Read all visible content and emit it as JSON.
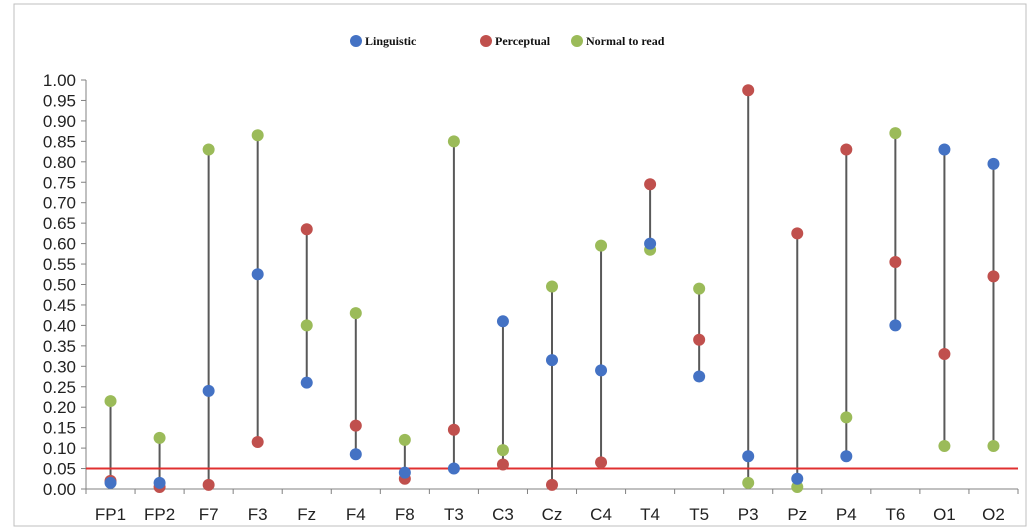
{
  "chart_data": {
    "type": "scatter",
    "categories": [
      "FP1",
      "FP2",
      "F7",
      "F3",
      "Fz",
      "F4",
      "F8",
      "T3",
      "C3",
      "Cz",
      "C4",
      "T4",
      "T5",
      "P3",
      "Pz",
      "P4",
      "T6",
      "O1",
      "O2"
    ],
    "series": [
      {
        "name": "Linguistic",
        "color": "#4472c4",
        "values": [
          0.015,
          0.015,
          0.24,
          0.525,
          0.26,
          0.085,
          0.04,
          0.05,
          0.41,
          0.315,
          0.29,
          0.6,
          0.275,
          0.08,
          0.025,
          0.08,
          0.4,
          0.83,
          0.795
        ]
      },
      {
        "name": "Perceptual",
        "color": "#c0504d",
        "values": [
          0.02,
          0.005,
          0.01,
          0.115,
          0.635,
          0.155,
          0.025,
          0.145,
          0.06,
          0.01,
          0.065,
          0.745,
          0.365,
          0.975,
          0.625,
          0.83,
          0.555,
          0.33,
          0.52
        ]
      },
      {
        "name": "Normal to read",
        "color": "#9bbb59",
        "values": [
          0.215,
          0.125,
          0.83,
          0.865,
          0.4,
          0.43,
          0.12,
          0.85,
          0.095,
          0.495,
          0.595,
          0.585,
          0.49,
          0.015,
          0.005,
          0.175,
          0.87,
          0.105,
          0.105
        ]
      }
    ],
    "ylim": [
      0,
      1.0
    ],
    "yticks": [
      "0.00",
      "0.05",
      "0.10",
      "0.15",
      "0.20",
      "0.25",
      "0.30",
      "0.35",
      "0.40",
      "0.45",
      "0.50",
      "0.55",
      "0.60",
      "0.65",
      "0.70",
      "0.75",
      "0.80",
      "0.85",
      "0.90",
      "0.95",
      "1.00"
    ],
    "threshold": {
      "value": 0.05,
      "color": "#e03030"
    },
    "legend_placement": "top-center",
    "grid": false,
    "title": "",
    "xlabel": "",
    "ylabel": ""
  }
}
